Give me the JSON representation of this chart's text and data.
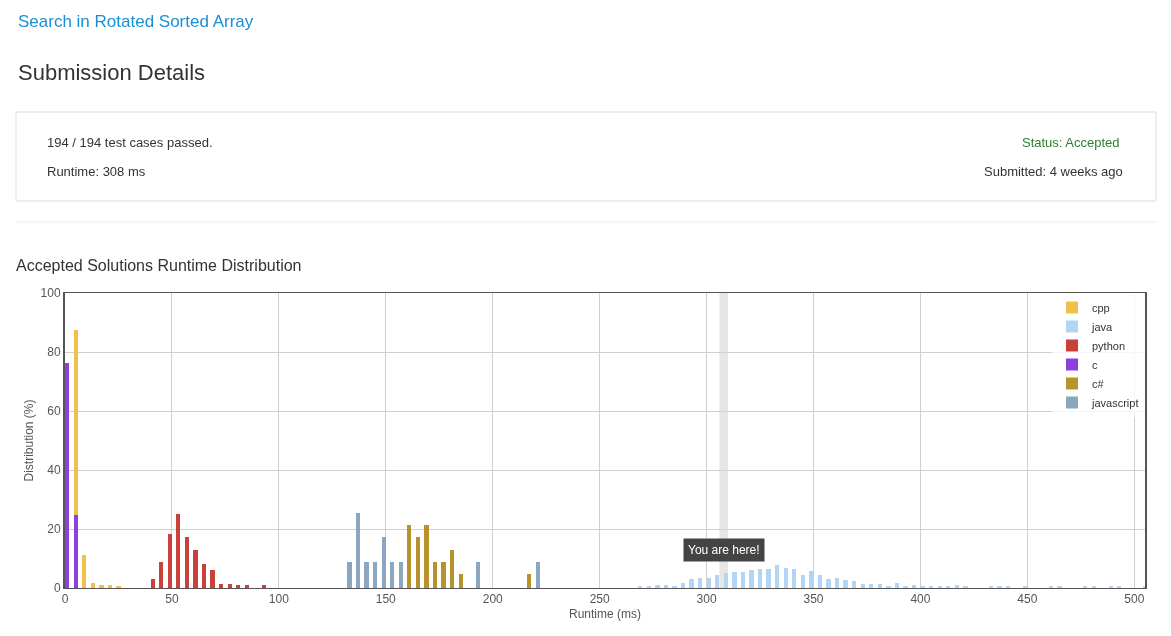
{
  "chart_data": {
    "type": "bar",
    "title": "Accepted Solutions Runtime Distribution",
    "xlabel": "Runtime (ms)",
    "ylabel": "Distribution (%)",
    "annotations": [
      "Search in Rotated Sorted Array",
      "Submission Details",
      "194 / 194 test cases passed.",
      "Runtime: 308 ms",
      "Status: Accepted",
      "Submitted: 4 weeks ago"
    ],
    "series": [
      {
        "name": "cpp",
        "color": "#f0c04a",
        "x": [
          5,
          9,
          13,
          17,
          21,
          25
        ],
        "values": [
          87.3,
          11.3,
          1.7,
          0.9,
          0.9,
          0.7
        ]
      },
      {
        "name": "java",
        "color": "#b3d4f5",
        "x": [
          269,
          273,
          277,
          281,
          285,
          289,
          293,
          297,
          301,
          305,
          309,
          313,
          317,
          321,
          325,
          329,
          333,
          337,
          341,
          345,
          349,
          353,
          357,
          361,
          365,
          369,
          373,
          377,
          381,
          385,
          389,
          393,
          397,
          401,
          405,
          409,
          413,
          417,
          421,
          433,
          437,
          441,
          449,
          461,
          465,
          477,
          481,
          489,
          493,
          505
        ],
        "values": [
          0.5,
          0.5,
          1.0,
          1.0,
          0.8,
          1.6,
          3.0,
          3.5,
          3.5,
          4.5,
          5.0,
          5.5,
          5.5,
          6.0,
          6.4,
          6.4,
          7.7,
          6.7,
          6.4,
          4.4,
          5.6,
          4.5,
          3.0,
          3.3,
          2.8,
          2.4,
          1.5,
          1.2,
          1.5,
          0.8,
          1.6,
          0.5,
          1.0,
          0.5,
          0.7,
          0.5,
          0.7,
          1.0,
          0.7,
          0.5,
          0.5,
          0.5,
          0.5,
          0.7,
          0.5,
          0.5,
          0.5,
          0.5,
          0.5,
          0.5
        ]
      },
      {
        "name": "python",
        "color": "#c9413b",
        "x": [
          41,
          45,
          49,
          53,
          57,
          61,
          65,
          69,
          73,
          77,
          81,
          85,
          93
        ],
        "values": [
          3.2,
          8.9,
          18.4,
          25.1,
          17.2,
          12.8,
          8.2,
          6.0,
          1.5,
          1.5,
          1.0,
          1.0,
          1.0
        ]
      },
      {
        "name": "c",
        "color": "#8e3fe0",
        "x": [
          1,
          5
        ],
        "values": [
          76.3,
          24.6
        ]
      },
      {
        "name": "c#",
        "color": "#b8922c",
        "x": [
          161,
          165,
          169,
          173,
          177,
          181,
          185,
          217
        ],
        "values": [
          21.5,
          17.2,
          21.5,
          8.8,
          8.8,
          13.0,
          4.6,
          4.6
        ]
      },
      {
        "name": "javascript",
        "color": "#8aa6c1",
        "x": [
          133,
          137,
          141,
          145,
          149,
          153,
          157,
          193,
          221
        ],
        "values": [
          8.8,
          25.4,
          8.8,
          8.8,
          17.2,
          8.8,
          8.8,
          8.8,
          8.8
        ]
      }
    ],
    "xlim": [
      0,
      505
    ],
    "xticks": [
      0,
      50,
      100,
      150,
      200,
      250,
      300,
      350,
      400,
      450,
      500
    ],
    "ylim": [
      0,
      100
    ],
    "yticks": [
      0,
      20,
      40,
      60,
      80,
      100
    ],
    "bands": [
      {
        "axis": "x",
        "from": 306,
        "to": 310,
        "label": "You are here!",
        "color": "#e6e6e6"
      }
    ],
    "grid": true,
    "legend": "top right"
  }
}
